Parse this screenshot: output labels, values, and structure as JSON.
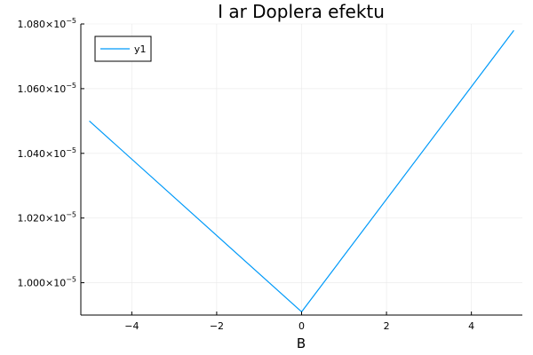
{
  "chart_data": {
    "type": "line",
    "title": "I ar Doplera efektu",
    "xlabel": "B",
    "ylabel": "",
    "xlim": [
      -5.2,
      5.2
    ],
    "ylim": [
      9.9e-06,
      1.08e-05
    ],
    "x_ticks": [
      -4,
      -2,
      0,
      2,
      4
    ],
    "x_tick_labels": [
      "−4",
      "−2",
      "0",
      "2",
      "4"
    ],
    "y_ticks": [
      1e-05,
      1.02e-05,
      1.04e-05,
      1.06e-05,
      1.08e-05
    ],
    "y_tick_labels": [
      {
        "mantissa": "1.000×10",
        "exp": "−5"
      },
      {
        "mantissa": "1.020×10",
        "exp": "−5"
      },
      {
        "mantissa": "1.040×10",
        "exp": "−5"
      },
      {
        "mantissa": "1.060×10",
        "exp": "−5"
      },
      {
        "mantissa": "1.080×10",
        "exp": "−5"
      }
    ],
    "grid": true,
    "legend": "top-left",
    "series": [
      {
        "name": "y1",
        "color": "#009af9",
        "x": [
          -5,
          0,
          5
        ],
        "y": [
          1.05e-05,
          9.91e-06,
          1.078e-05
        ]
      }
    ]
  }
}
